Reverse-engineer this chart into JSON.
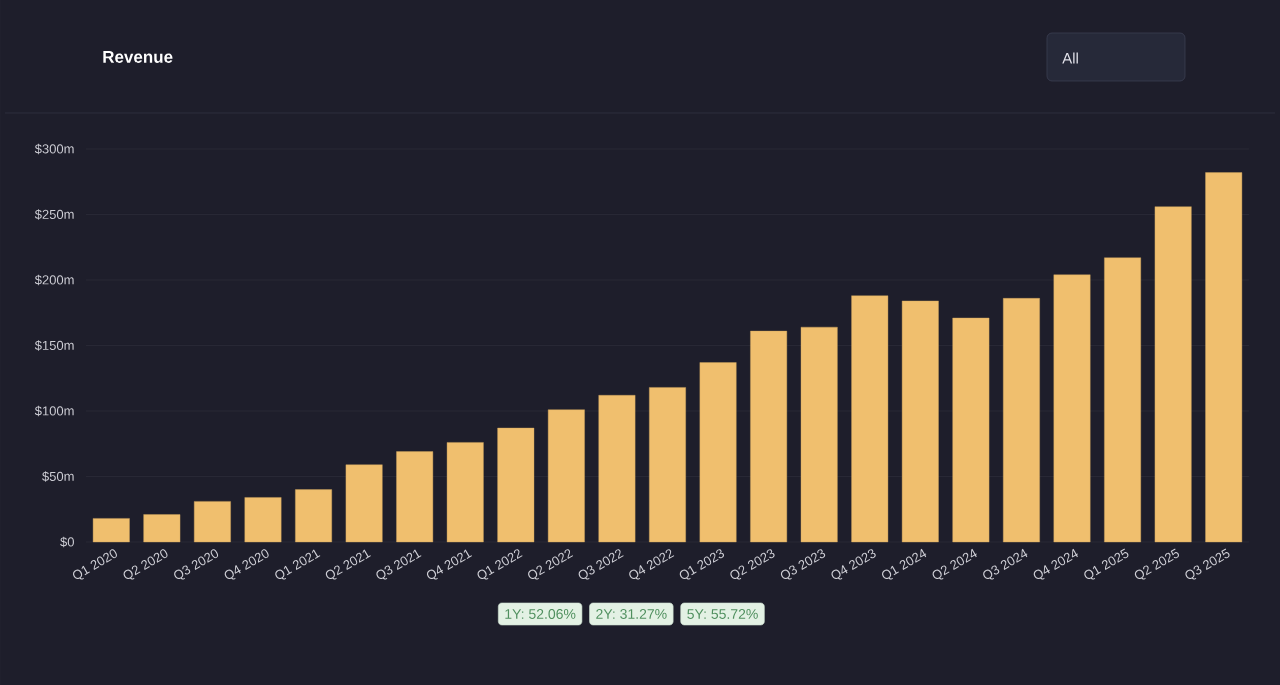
{
  "chart_data": {
    "type": "bar",
    "title": "Revenue",
    "categories": [
      "Q1 2020",
      "Q2 2020",
      "Q3 2020",
      "Q4 2020",
      "Q1 2021",
      "Q2 2021",
      "Q3 2021",
      "Q4 2021",
      "Q1 2022",
      "Q2 2022",
      "Q3 2022",
      "Q4 2022",
      "Q1 2023",
      "Q2 2023",
      "Q3 2023",
      "Q4 2023",
      "Q1 2024",
      "Q2 2024",
      "Q3 2024",
      "Q4 2024",
      "Q1 2025",
      "Q2 2025",
      "Q3 2025"
    ],
    "values": [
      18,
      21,
      31,
      34,
      40,
      59,
      69,
      76,
      87,
      101,
      112,
      118,
      137,
      161,
      164,
      188,
      184,
      171,
      186,
      204,
      217,
      256,
      282
    ],
    "color": "#f0bf6e",
    "ylim": [
      0,
      300
    ],
    "yticks": [
      {
        "value": 0,
        "label": "$0"
      },
      {
        "value": 50,
        "label": "$50m"
      },
      {
        "value": 100,
        "label": "$100m"
      },
      {
        "value": 150,
        "label": "$150m"
      },
      {
        "value": 200,
        "label": "$200m"
      },
      {
        "value": 250,
        "label": "$250m"
      },
      {
        "value": 300,
        "label": "$300m"
      }
    ],
    "grid": "y",
    "annotations": [
      "All",
      "1Y: 52.06%",
      "2Y: 31.27%",
      "5Y: 55.72%"
    ]
  }
}
